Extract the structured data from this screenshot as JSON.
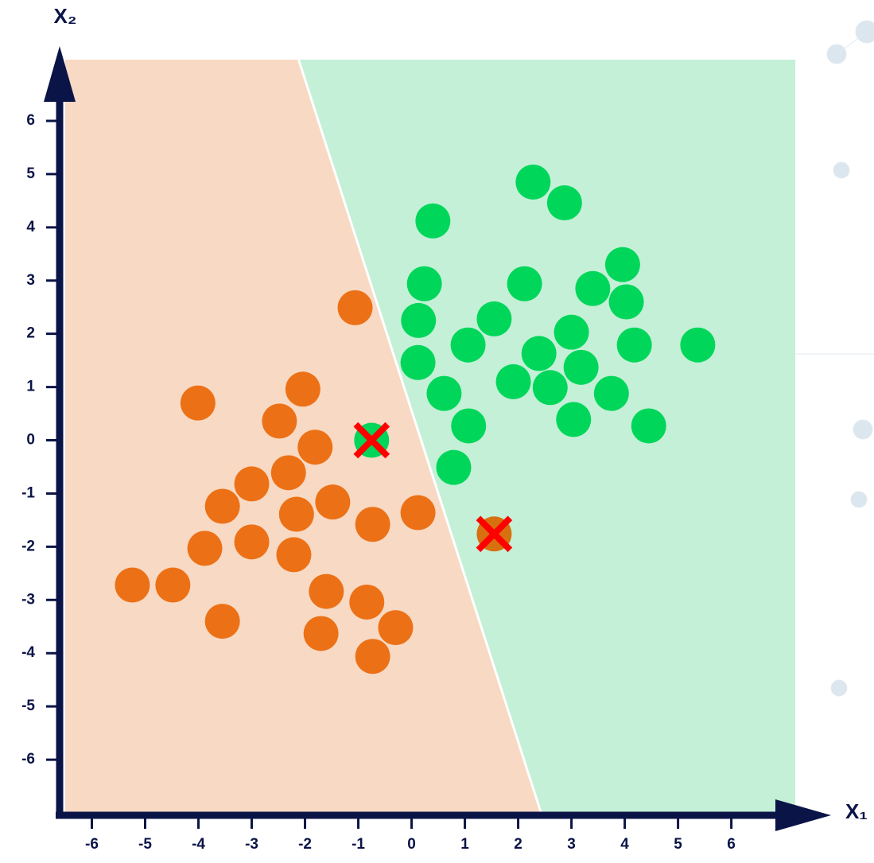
{
  "chart_data": {
    "type": "scatter",
    "xlabel": "X₁",
    "ylabel": "X₂",
    "xlim": [
      -6.5,
      7.2
    ],
    "ylim": [
      -7.0,
      7.15
    ],
    "xticks": [
      -6,
      -5,
      -4,
      -3,
      -2,
      -1,
      0,
      1,
      2,
      3,
      4,
      5,
      6
    ],
    "yticks": [
      -6,
      -5,
      -4,
      -3,
      -2,
      -1,
      0,
      1,
      2,
      3,
      4,
      5,
      6
    ],
    "boundary": {
      "x": [
        -2.12,
        2.43
      ],
      "y": [
        7.15,
        -7.0
      ],
      "left_color": "#f8d9c4",
      "right_color": "#c3f0d7"
    },
    "series": [
      {
        "color": "#ec7116",
        "x": [
          -1.06,
          -4.01,
          -2.04,
          -2.48,
          -1.81,
          -2.31,
          -3.0,
          -3.55,
          -2.16,
          -1.48,
          -0.73,
          0.12,
          -3.88,
          -3.0,
          -2.21,
          -5.24,
          -4.48,
          -3.55,
          -1.6,
          -0.84,
          -1.7,
          -0.3,
          -0.73
        ],
        "values": [
          2.49,
          0.7,
          0.96,
          0.36,
          -0.13,
          -0.61,
          -0.82,
          -1.24,
          -1.39,
          -1.16,
          -1.58,
          -1.36,
          -2.03,
          -1.91,
          -2.15,
          -2.72,
          -2.72,
          -3.4,
          -2.84,
          -3.04,
          -3.63,
          -3.52,
          -4.06
        ]
      },
      {
        "color": "#00d65a",
        "x": [
          2.28,
          2.87,
          0.4,
          0.24,
          2.12,
          3.96,
          3.4,
          4.03,
          0.13,
          1.55,
          1.06,
          3.0,
          4.18,
          5.37,
          2.39,
          0.12,
          3.18,
          1.91,
          2.6,
          0.61,
          3.75,
          3.04,
          1.07,
          4.45,
          0.79
        ],
        "values": [
          4.85,
          4.46,
          4.12,
          2.94,
          2.94,
          3.3,
          2.85,
          2.6,
          2.25,
          2.28,
          1.79,
          2.03,
          1.79,
          1.79,
          1.63,
          1.46,
          1.37,
          1.1,
          0.99,
          0.88,
          0.88,
          0.39,
          0.27,
          0.27,
          -0.51
        ]
      },
      {
        "color": "#00d65a",
        "cross_color": "#ff0000",
        "x": [
          -0.75
        ],
        "values": [
          0.0
        ]
      },
      {
        "color": "#d8700f",
        "cross_color": "#ff0000",
        "x": [
          1.55
        ],
        "values": [
          -1.76
        ]
      }
    ]
  }
}
